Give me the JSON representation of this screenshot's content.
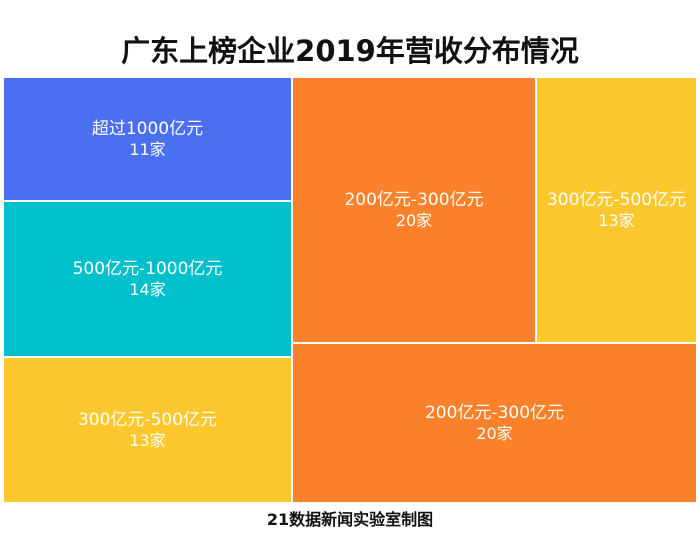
{
  "title": "广东上榜企业2019年营收分布情况",
  "footer": "21数据新闻实验室制图",
  "chart_data": {
    "type": "treemap",
    "title": "广东上榜企业2019年营收分布情况",
    "unit": "家",
    "tiles": [
      {
        "label": "超过1000亿元",
        "count_label": "11家",
        "value": 11,
        "color": "#4a6ff0"
      },
      {
        "label": "500亿元-1000亿元",
        "count_label": "14家",
        "value": 14,
        "color": "#00c0cc"
      },
      {
        "label": "300亿元-500亿元",
        "count_label": "13家",
        "value": 13,
        "color": "#fdc72e"
      },
      {
        "label": "200亿元-300亿元",
        "count_label": "20家",
        "value": 20,
        "color": "#fb812a"
      },
      {
        "label": "300亿元-500亿元",
        "count_label": "13家",
        "value": 13,
        "color": "#fdc72e"
      },
      {
        "label": "200亿元-300亿元",
        "count_label": "20家",
        "value": 20,
        "color": "#fb812a"
      }
    ]
  }
}
